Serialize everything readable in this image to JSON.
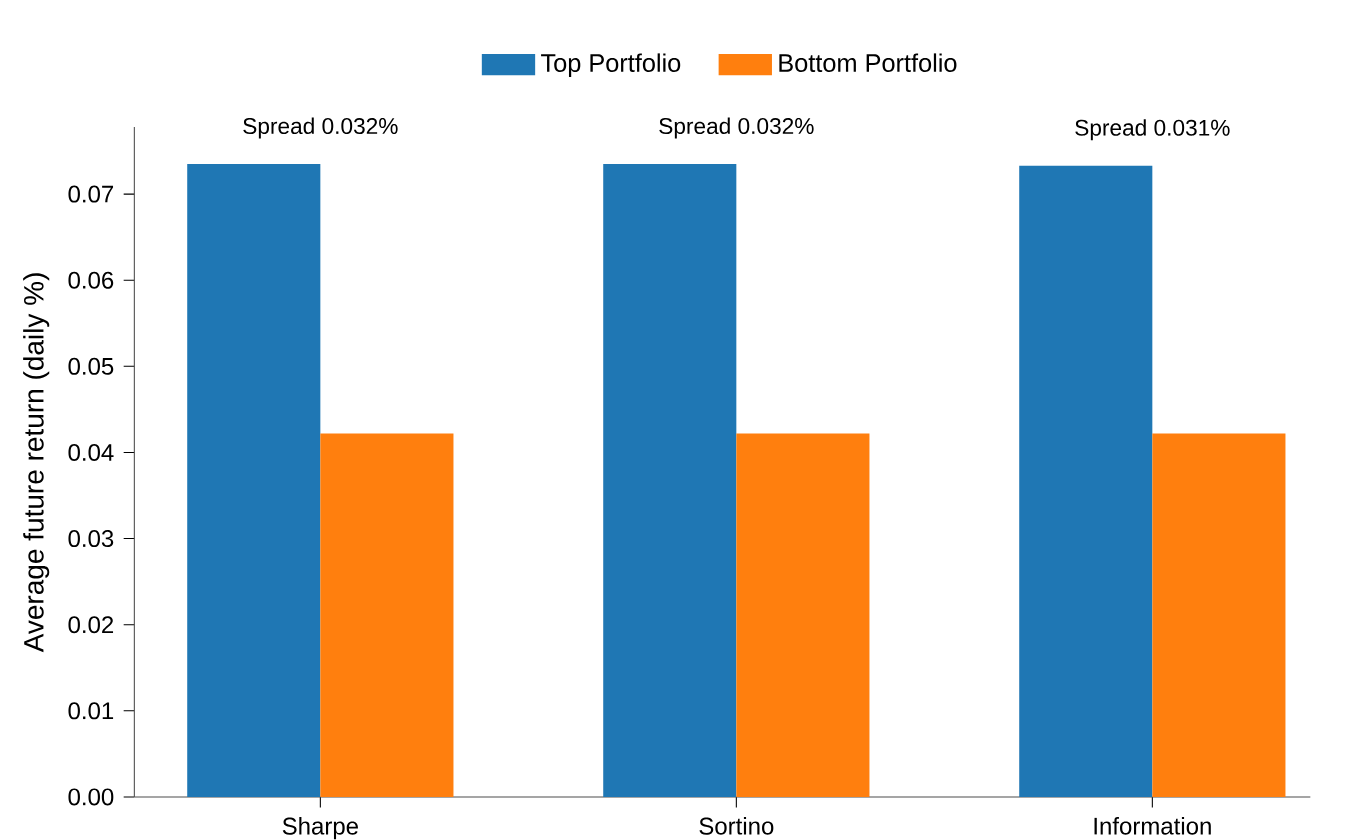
{
  "chart_data": {
    "type": "bar",
    "ylabel": "Average future return (daily %)",
    "categories": [
      "Sharpe",
      "Sortino",
      "Information"
    ],
    "series": [
      {
        "name": "Top Portfolio",
        "color": "#1f77b4",
        "values": [
          0.0735,
          0.0735,
          0.0733
        ]
      },
      {
        "name": "Bottom Portfolio",
        "color": "#ff7f0e",
        "values": [
          0.0422,
          0.0422,
          0.0422
        ]
      }
    ],
    "ylim": [
      0,
      0.0778
    ],
    "yticks": [
      {
        "value": 0,
        "label": "0.00"
      },
      {
        "value": 0.01,
        "label": "0.01"
      },
      {
        "value": 0.02,
        "label": "0.02"
      },
      {
        "value": 0.03,
        "label": "0.03"
      },
      {
        "value": 0.04,
        "label": "0.04"
      },
      {
        "value": 0.05,
        "label": "0.05"
      },
      {
        "value": 0.06,
        "label": "0.06"
      },
      {
        "value": 0.07,
        "label": "0.07"
      }
    ],
    "annotations": [
      {
        "text": "Spread 0.032%",
        "x": "Sharpe",
        "y": 0.0735
      },
      {
        "text": "Spread 0.032%",
        "x": "Sortino",
        "y": 0.0735
      },
      {
        "text": "Spread 0.031%",
        "x": "Information",
        "y": 0.0733
      }
    ],
    "grid": false,
    "legend": "top"
  }
}
